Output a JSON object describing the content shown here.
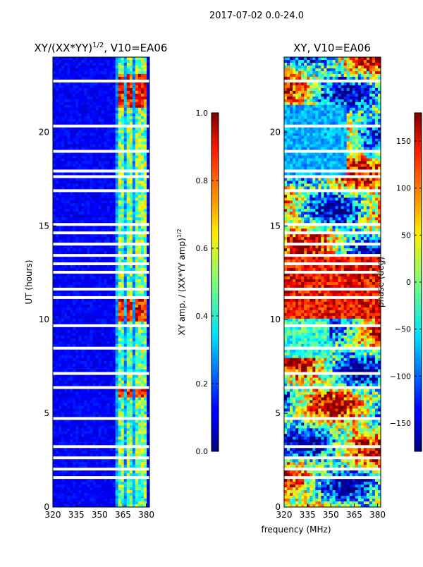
{
  "suptitle": "2017-07-02 0.0-24.0",
  "chart_data": [
    {
      "type": "heatmap",
      "title_main": "XY/(XX*YY)",
      "title_exp": "1/2",
      "title_suffix": ", V10=EA06",
      "xlabel": "",
      "ylabel": "UT (hours)",
      "xlim": [
        320,
        382
      ],
      "ylim": [
        0,
        24
      ],
      "xticks": [
        320,
        335,
        350,
        365,
        380
      ],
      "yticks": [
        0,
        5,
        10,
        15,
        20
      ],
      "colorscale": "jet",
      "value_range": [
        0.0,
        1.0
      ],
      "colorbar": {
        "label_main": "XY amp. / (XX*YY amp)",
        "label_exp": "1/2",
        "ticks": [
          0.0,
          0.2,
          0.4,
          0.6,
          0.8,
          1.0
        ],
        "tick_labels": [
          "0.0",
          "0.2",
          "0.4",
          "0.6",
          "0.8",
          "1.0"
        ]
      }
    },
    {
      "type": "heatmap",
      "title_main": "XY, V10=EA06",
      "xlabel": "frequency (MHz)",
      "ylabel": "",
      "xlim": [
        320,
        382
      ],
      "ylim": [
        0,
        24
      ],
      "xticks": [
        320,
        335,
        350,
        365,
        380
      ],
      "yticks": [
        0,
        5,
        10,
        15,
        20
      ],
      "colorscale": "jet",
      "value_range": [
        -180,
        180
      ],
      "colorbar": {
        "label_main": "phase (deg)",
        "ticks": [
          -150,
          -100,
          -50,
          0,
          50,
          100,
          150
        ],
        "tick_labels": [
          "−150",
          "−100",
          "−50",
          "0",
          "50",
          "100",
          "150"
        ]
      }
    }
  ]
}
